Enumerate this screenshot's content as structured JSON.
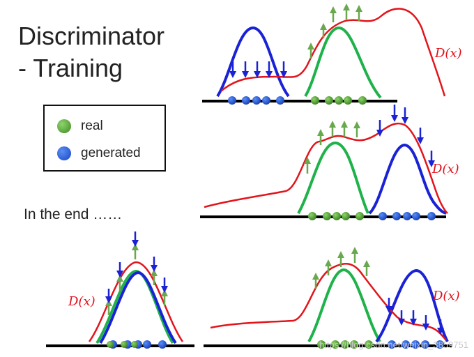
{
  "title": {
    "line1": "Discriminator",
    "line2": "- Training"
  },
  "legend": {
    "real_label": "real",
    "generated_label": "generated",
    "real_color": "#5aa43c",
    "generated_color": "#2e5fd8"
  },
  "end_text": "In the end ……",
  "function_label": "D(x)",
  "colors": {
    "d_curve": "#e3141b",
    "real_curve": "#1fb24a",
    "generated_curve": "#1a22d6",
    "up_arrow": "#6aa84f",
    "down_arrow": "#1a22d6",
    "axis": "#000000"
  },
  "watermark": "https://blog.csdn.net/weixin_3859751"
}
